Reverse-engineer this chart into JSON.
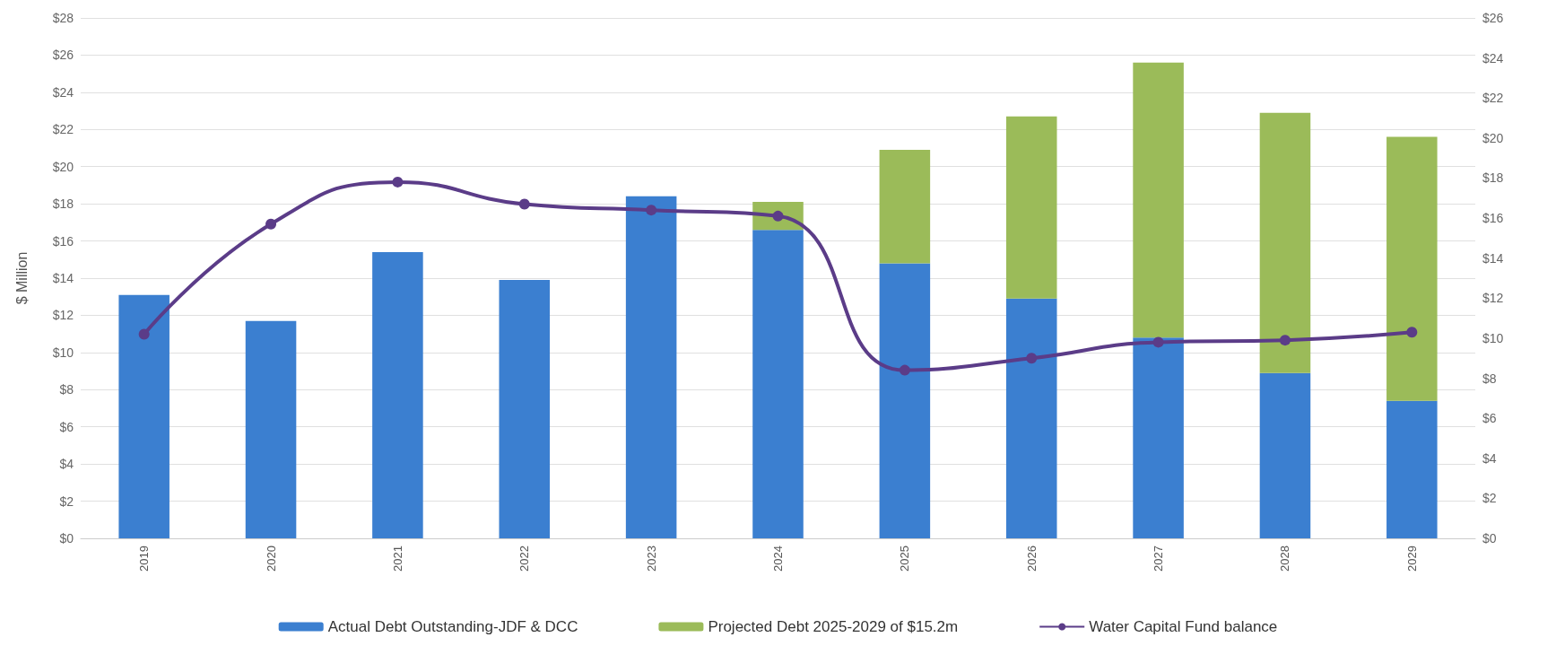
{
  "chart_data": {
    "type": "bar",
    "stacked": true,
    "ylabel": "$ Million",
    "categories": [
      "2019",
      "2020",
      "2021",
      "2022",
      "2023",
      "2024",
      "2025",
      "2026",
      "2027",
      "2028",
      "2029"
    ],
    "series": [
      {
        "name": "Actual Debt Outstanding-JDF & DCC",
        "color": "#3b7fd0",
        "values": [
          13.1,
          11.7,
          15.4,
          13.9,
          18.4,
          16.6,
          14.8,
          12.9,
          10.8,
          8.9,
          7.4
        ]
      },
      {
        "name": "Projected Debt 2025-2029 of $15.2m",
        "color": "#9bbb59",
        "values": [
          null,
          null,
          null,
          null,
          null,
          1.5,
          6.1,
          9.8,
          14.8,
          14.0,
          14.2
        ]
      },
      {
        "name": "Water Capital Fund balance",
        "type": "line",
        "axis": "y2",
        "color": "#5b3c88",
        "marker": "circle",
        "values": [
          10.2,
          15.7,
          17.8,
          16.7,
          16.4,
          16.1,
          8.4,
          9.0,
          9.8,
          9.9,
          10.3
        ]
      }
    ],
    "ylim": [
      0,
      28
    ],
    "yticks": [
      {
        "value": 0,
        "label": "$0"
      },
      {
        "value": 2,
        "label": "$2"
      },
      {
        "value": 4,
        "label": "$4"
      },
      {
        "value": 6,
        "label": "$6"
      },
      {
        "value": 8,
        "label": "$8"
      },
      {
        "value": 10,
        "label": "$10"
      },
      {
        "value": 12,
        "label": "$12"
      },
      {
        "value": 14,
        "label": "$14"
      },
      {
        "value": 16,
        "label": "$16"
      },
      {
        "value": 18,
        "label": "$18"
      },
      {
        "value": 20,
        "label": "$20"
      },
      {
        "value": 22,
        "label": "$22"
      },
      {
        "value": 24,
        "label": "$24"
      },
      {
        "value": 26,
        "label": "$26"
      },
      {
        "value": 28,
        "label": "$28"
      }
    ],
    "y2lim": [
      0,
      26
    ],
    "y2ticks": [
      {
        "value": 0,
        "label": "$0"
      },
      {
        "value": 2,
        "label": "$2"
      },
      {
        "value": 4,
        "label": "$4"
      },
      {
        "value": 6,
        "label": "$6"
      },
      {
        "value": 8,
        "label": "$8"
      },
      {
        "value": 10,
        "label": "$10"
      },
      {
        "value": 12,
        "label": "$12"
      },
      {
        "value": 14,
        "label": "$14"
      },
      {
        "value": 16,
        "label": "$16"
      },
      {
        "value": 18,
        "label": "$18"
      },
      {
        "value": 20,
        "label": "$20"
      },
      {
        "value": 22,
        "label": "$22"
      },
      {
        "value": 24,
        "label": "$24"
      },
      {
        "value": 26,
        "label": "$26"
      }
    ],
    "grid": "y",
    "legend": "bottom"
  }
}
